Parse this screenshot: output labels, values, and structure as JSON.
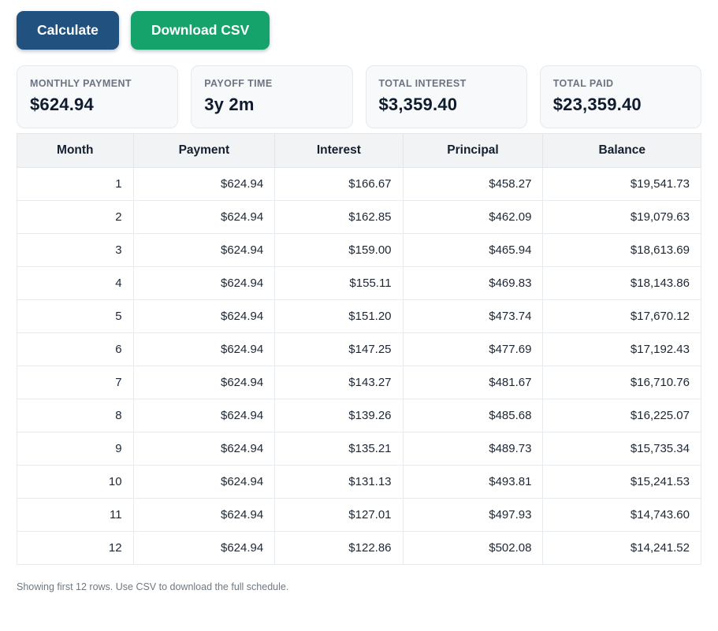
{
  "toolbar": {
    "calculate_label": "Calculate",
    "download_csv_label": "Download CSV"
  },
  "colors": {
    "primary_button": "#21517f",
    "success_button": "#16a26b",
    "card_background": "#f8f9fa",
    "table_header_background": "#f1f3f5"
  },
  "summary_cards": [
    {
      "label": "MONTHLY PAYMENT",
      "value": "$624.94"
    },
    {
      "label": "PAYOFF TIME",
      "value": "3y 2m"
    },
    {
      "label": "TOTAL INTEREST",
      "value": "$3,359.40"
    },
    {
      "label": "TOTAL PAID",
      "value": "$23,359.40"
    }
  ],
  "table": {
    "columns": [
      "Month",
      "Payment",
      "Interest",
      "Principal",
      "Balance"
    ],
    "rows": [
      [
        "1",
        "$624.94",
        "$166.67",
        "$458.27",
        "$19,541.73"
      ],
      [
        "2",
        "$624.94",
        "$162.85",
        "$462.09",
        "$19,079.63"
      ],
      [
        "3",
        "$624.94",
        "$159.00",
        "$465.94",
        "$18,613.69"
      ],
      [
        "4",
        "$624.94",
        "$155.11",
        "$469.83",
        "$18,143.86"
      ],
      [
        "5",
        "$624.94",
        "$151.20",
        "$473.74",
        "$17,670.12"
      ],
      [
        "6",
        "$624.94",
        "$147.25",
        "$477.69",
        "$17,192.43"
      ],
      [
        "7",
        "$624.94",
        "$143.27",
        "$481.67",
        "$16,710.76"
      ],
      [
        "8",
        "$624.94",
        "$139.26",
        "$485.68",
        "$16,225.07"
      ],
      [
        "9",
        "$624.94",
        "$135.21",
        "$489.73",
        "$15,735.34"
      ],
      [
        "10",
        "$624.94",
        "$131.13",
        "$493.81",
        "$15,241.53"
      ],
      [
        "11",
        "$624.94",
        "$127.01",
        "$497.93",
        "$14,743.60"
      ],
      [
        "12",
        "$624.94",
        "$122.86",
        "$502.08",
        "$14,241.52"
      ]
    ]
  },
  "footer": {
    "note": "Showing first 12 rows. Use CSV to download the full schedule."
  }
}
